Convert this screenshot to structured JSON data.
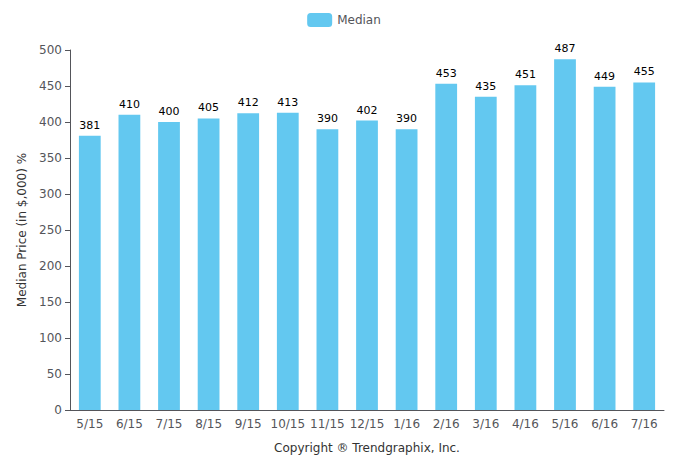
{
  "chart_data": {
    "type": "bar",
    "categories": [
      "5/15",
      "6/15",
      "7/15",
      "8/15",
      "9/15",
      "10/15",
      "11/15",
      "12/15",
      "1/16",
      "2/16",
      "3/16",
      "4/16",
      "5/16",
      "6/16",
      "7/16"
    ],
    "series": [
      {
        "name": "Median",
        "color": "#63C8F0",
        "values": [
          381,
          410,
          400,
          405,
          412,
          413,
          390,
          402,
          390,
          453,
          435,
          451,
          487,
          449,
          455
        ]
      }
    ],
    "ylabel": "Median Price (in $,000) %",
    "xlabel": "Copyright ® Trendgraphix, Inc.",
    "ylim": [
      0,
      500
    ],
    "yticks": [
      0,
      50,
      100,
      150,
      200,
      250,
      300,
      350,
      400,
      450,
      500
    ],
    "grid": false,
    "legend": "top",
    "data_labels": true
  }
}
